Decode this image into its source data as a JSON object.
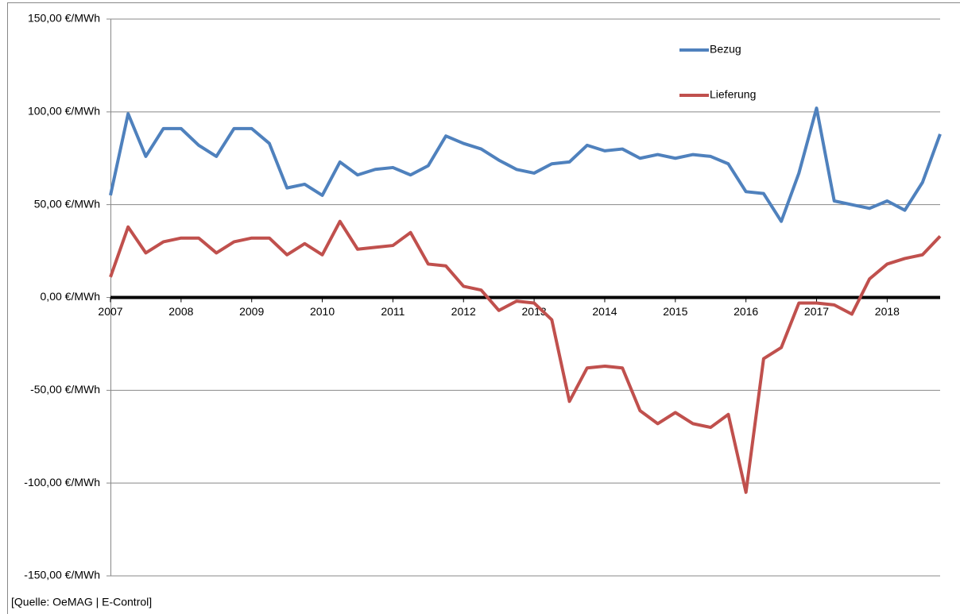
{
  "chart_data": {
    "type": "line",
    "x": [
      2007,
      2007.25,
      2007.5,
      2007.75,
      2008,
      2008.25,
      2008.5,
      2008.75,
      2009,
      2009.25,
      2009.5,
      2009.75,
      2010,
      2010.25,
      2010.5,
      2010.75,
      2011,
      2011.25,
      2011.5,
      2011.75,
      2012,
      2012.25,
      2012.5,
      2012.75,
      2013,
      2013.25,
      2013.5,
      2013.75,
      2014,
      2014.25,
      2014.5,
      2014.75,
      2015,
      2015.25,
      2015.5,
      2015.75,
      2016,
      2016.25,
      2016.5,
      2016.75,
      2017,
      2017.25,
      2017.5,
      2017.75,
      2018,
      2018.25,
      2018.5,
      2018.75
    ],
    "series": [
      {
        "name": "Bezug",
        "color": "#4f81bd",
        "values": [
          55,
          99,
          76,
          91,
          91,
          82,
          76,
          91,
          91,
          83,
          59,
          61,
          55,
          73,
          66,
          69,
          70,
          66,
          71,
          87,
          83,
          80,
          74,
          69,
          67,
          72,
          73,
          82,
          79,
          80,
          75,
          77,
          75,
          77,
          76,
          72,
          57,
          56,
          41,
          67,
          102,
          52,
          50,
          48,
          52,
          47,
          62,
          88
        ]
      },
      {
        "name": "Lieferung",
        "color": "#c0504d",
        "values": [
          11,
          38,
          24,
          30,
          32,
          32,
          24,
          30,
          32,
          32,
          23,
          29,
          23,
          41,
          26,
          27,
          28,
          35,
          18,
          17,
          6,
          4,
          -7,
          -2,
          -3,
          -12,
          -56,
          -38,
          -37,
          -38,
          -61,
          -68,
          -62,
          -68,
          -70,
          -63,
          -105,
          -33,
          -27,
          -3,
          -3,
          -4,
          -9,
          10,
          18,
          21,
          23,
          33
        ]
      }
    ],
    "xlim": [
      2007,
      2018.75
    ],
    "xticks": [
      2007,
      2008,
      2009,
      2010,
      2011,
      2012,
      2013,
      2014,
      2015,
      2016,
      2017,
      2018
    ],
    "ylim": [
      -150,
      150
    ],
    "yticks": [
      {
        "value": -150,
        "label": "-150,00 €/MWh"
      },
      {
        "value": -100,
        "label": "-100,00 €/MWh"
      },
      {
        "value": -50,
        "label": "-50,00 €/MWh"
      },
      {
        "value": 0,
        "label": "0,00 €/MWh"
      },
      {
        "value": 50,
        "label": "50,00 €/MWh"
      },
      {
        "value": 100,
        "label": "100,00 €/MWh"
      },
      {
        "value": 150,
        "label": "150,00 €/MWh"
      }
    ],
    "grid": true,
    "source": "[Quelle: OeMAG | E-Control]"
  }
}
